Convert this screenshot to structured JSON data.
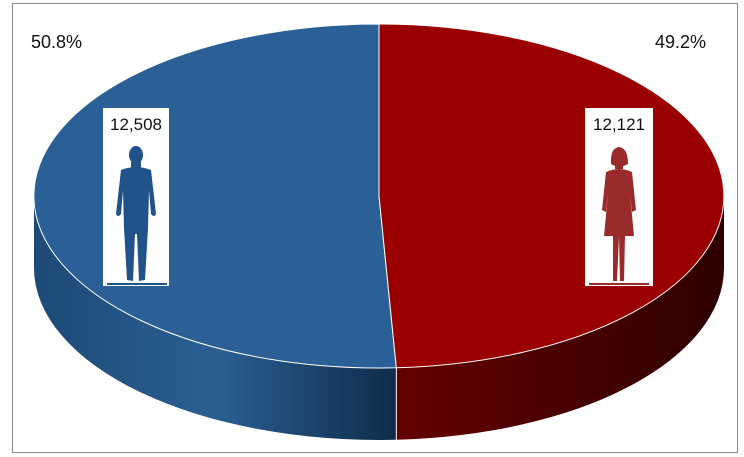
{
  "chart_data": {
    "type": "pie",
    "style": "3d",
    "slices": [
      {
        "percent_label": "50.8%",
        "value": 50.8,
        "count_label": "12,508",
        "color": "#2a6096",
        "icon": "male-figure-icon"
      },
      {
        "percent_label": "49.2%",
        "value": 49.2,
        "count_label": "12,121",
        "color": "#9b0000",
        "icon": "female-figure-icon"
      }
    ]
  }
}
